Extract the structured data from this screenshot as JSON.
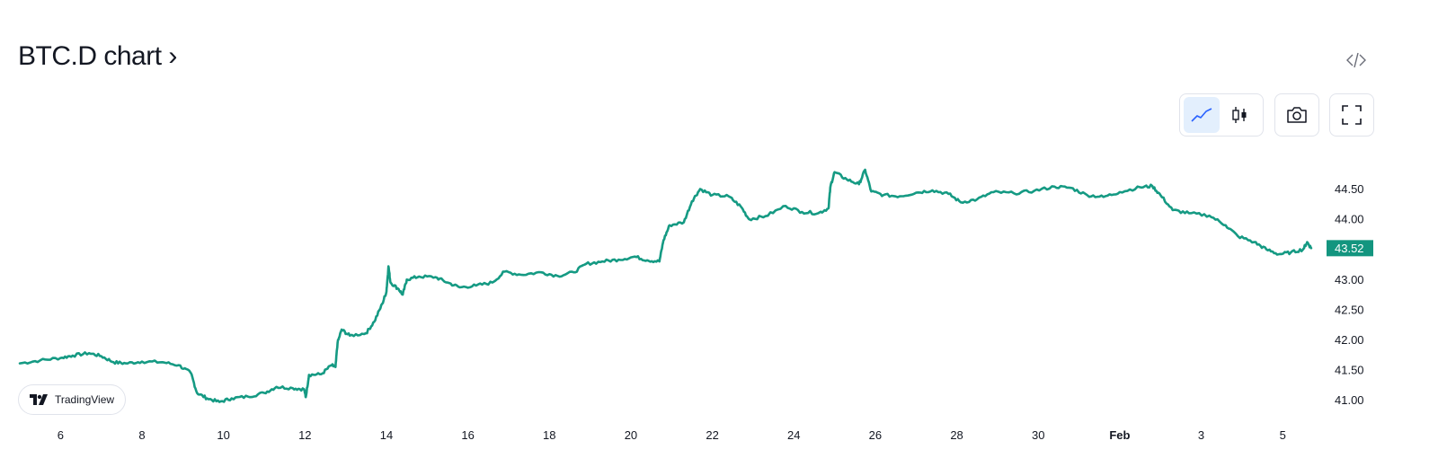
{
  "header": {
    "title": "BTC.D chart ›"
  },
  "icons": {
    "embed": "code-icon",
    "line_style": "line-chart-icon",
    "candle_style": "candlestick-icon",
    "snapshot": "camera-icon",
    "fullscreen": "fullscreen-icon"
  },
  "badge": {
    "label": "TradingView"
  },
  "colors": {
    "line": "#159a83",
    "accent": "#2962ff",
    "active_bg": "#e3effd",
    "last_price_bg": "#13957f"
  },
  "chart_data": {
    "type": "line",
    "title": "",
    "xlabel": "",
    "ylabel": "",
    "grid": false,
    "x_ticks": [
      "6",
      "8",
      "10",
      "12",
      "14",
      "16",
      "18",
      "20",
      "22",
      "24",
      "26",
      "28",
      "30",
      "Feb",
      "3",
      "5"
    ],
    "y_ticks": [
      "44.50",
      "44.00",
      "43.00",
      "42.50",
      "42.00",
      "41.50",
      "41.00"
    ],
    "ylim": [
      40.86,
      44.88
    ],
    "xlim": [
      5.0,
      36.9
    ],
    "last_price": "43.52",
    "series": [
      {
        "points": [
          [
            5.0,
            41.61
          ],
          [
            5.5,
            41.66
          ],
          [
            6.0,
            41.7
          ],
          [
            6.3,
            41.74
          ],
          [
            6.7,
            41.78
          ],
          [
            7.0,
            41.73
          ],
          [
            7.3,
            41.63
          ],
          [
            7.6,
            41.61
          ],
          [
            8.0,
            41.64
          ],
          [
            8.5,
            41.63
          ],
          [
            8.9,
            41.58
          ],
          [
            9.2,
            41.45
          ],
          [
            9.35,
            41.12
          ],
          [
            9.6,
            41.03
          ],
          [
            9.9,
            40.97
          ],
          [
            10.2,
            41.03
          ],
          [
            10.6,
            41.06
          ],
          [
            11.0,
            41.12
          ],
          [
            11.3,
            41.22
          ],
          [
            11.7,
            41.2
          ],
          [
            11.98,
            41.18
          ],
          [
            12.02,
            41.05
          ],
          [
            12.1,
            41.42
          ],
          [
            12.4,
            41.43
          ],
          [
            12.65,
            41.58
          ],
          [
            12.75,
            41.55
          ],
          [
            12.8,
            41.95
          ],
          [
            12.9,
            42.17
          ],
          [
            13.1,
            42.07
          ],
          [
            13.5,
            42.11
          ],
          [
            13.7,
            42.3
          ],
          [
            13.9,
            42.6
          ],
          [
            14.0,
            42.8
          ],
          [
            14.05,
            43.22
          ],
          [
            14.1,
            42.95
          ],
          [
            14.3,
            42.84
          ],
          [
            14.4,
            42.75
          ],
          [
            14.5,
            43.0
          ],
          [
            14.8,
            43.05
          ],
          [
            15.2,
            43.04
          ],
          [
            15.5,
            42.95
          ],
          [
            15.8,
            42.87
          ],
          [
            16.2,
            42.9
          ],
          [
            16.6,
            42.95
          ],
          [
            16.9,
            43.13
          ],
          [
            17.3,
            43.08
          ],
          [
            17.8,
            43.12
          ],
          [
            18.2,
            43.06
          ],
          [
            18.6,
            43.12
          ],
          [
            18.9,
            43.26
          ],
          [
            19.3,
            43.3
          ],
          [
            19.7,
            43.33
          ],
          [
            20.1,
            43.38
          ],
          [
            20.4,
            43.32
          ],
          [
            20.7,
            43.3
          ],
          [
            20.8,
            43.65
          ],
          [
            20.95,
            43.9
          ],
          [
            21.3,
            43.95
          ],
          [
            21.5,
            44.3
          ],
          [
            21.7,
            44.5
          ],
          [
            22.0,
            44.4
          ],
          [
            22.4,
            44.38
          ],
          [
            22.7,
            44.21
          ],
          [
            22.9,
            44.0
          ],
          [
            23.3,
            44.05
          ],
          [
            23.8,
            44.22
          ],
          [
            24.2,
            44.12
          ],
          [
            24.6,
            44.1
          ],
          [
            24.85,
            44.18
          ],
          [
            24.9,
            44.55
          ],
          [
            25.0,
            44.78
          ],
          [
            25.3,
            44.66
          ],
          [
            25.6,
            44.58
          ],
          [
            25.75,
            44.82
          ],
          [
            25.9,
            44.46
          ],
          [
            26.2,
            44.4
          ],
          [
            26.6,
            44.38
          ],
          [
            27.0,
            44.44
          ],
          [
            27.4,
            44.48
          ],
          [
            27.8,
            44.42
          ],
          [
            28.1,
            44.28
          ],
          [
            28.5,
            44.33
          ],
          [
            28.9,
            44.45
          ],
          [
            29.4,
            44.43
          ],
          [
            29.9,
            44.47
          ],
          [
            30.4,
            44.54
          ],
          [
            30.8,
            44.52
          ],
          [
            31.2,
            44.4
          ],
          [
            31.6,
            44.37
          ],
          [
            32.0,
            44.45
          ],
          [
            32.5,
            44.53
          ],
          [
            32.8,
            44.55
          ],
          [
            33.0,
            44.4
          ],
          [
            33.3,
            44.15
          ],
          [
            33.7,
            44.1
          ],
          [
            34.2,
            44.06
          ],
          [
            34.6,
            43.9
          ],
          [
            34.9,
            43.72
          ],
          [
            35.3,
            43.62
          ],
          [
            35.6,
            43.5
          ],
          [
            35.9,
            43.42
          ],
          [
            36.2,
            43.45
          ],
          [
            36.5,
            43.5
          ],
          [
            36.6,
            43.62
          ],
          [
            36.7,
            43.52
          ]
        ]
      }
    ]
  }
}
